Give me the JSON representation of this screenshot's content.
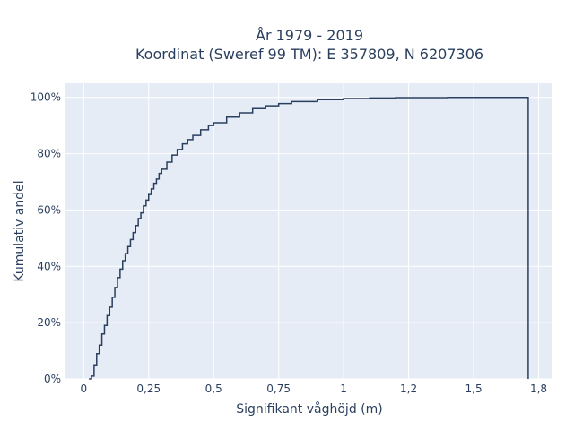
{
  "chart_data": {
    "type": "line",
    "line_shape": "step",
    "title_lines": [
      "År 1979 - 2019",
      "Koordinat (Sweref 99 TM): E 357809, N 6207306"
    ],
    "xlabel": "Signifikant våghöjd (m)",
    "ylabel": "Kumulativ andel",
    "xlim": [
      -0.07,
      1.8
    ],
    "ylim": [
      0,
      1.05
    ],
    "x_ticks": [
      0,
      0.25,
      0.5,
      0.75,
      1,
      1.25,
      1.5,
      1.75
    ],
    "x_tick_labels": [
      "0",
      "0,25",
      "0,5",
      "0,75",
      "1",
      "1,2",
      "1,5",
      "1,8"
    ],
    "y_ticks": [
      0,
      0.2,
      0.4,
      0.6,
      0.8,
      1.0
    ],
    "y_tick_labels": [
      "0%",
      "20%",
      "40%",
      "60%",
      "80%",
      "100%"
    ],
    "grid": true,
    "line_color": "#2a3f5f",
    "plot_bgcolor": "#e5ecf6",
    "series": [
      {
        "x": [
          0.02,
          0.03,
          0.04,
          0.05,
          0.06,
          0.07,
          0.08,
          0.09,
          0.1,
          0.11,
          0.12,
          0.13,
          0.14,
          0.15,
          0.16,
          0.17,
          0.18,
          0.19,
          0.2,
          0.21,
          0.22,
          0.23,
          0.24,
          0.25,
          0.26,
          0.27,
          0.28,
          0.29,
          0.3,
          0.32,
          0.34,
          0.36,
          0.38,
          0.4,
          0.42,
          0.45,
          0.48,
          0.5,
          0.55,
          0.6,
          0.65,
          0.7,
          0.75,
          0.8,
          0.9,
          1.0,
          1.1,
          1.2,
          1.4,
          1.5,
          1.71
        ],
        "y": [
          0.0,
          0.01,
          0.05,
          0.09,
          0.12,
          0.16,
          0.19,
          0.225,
          0.255,
          0.29,
          0.325,
          0.36,
          0.39,
          0.42,
          0.445,
          0.47,
          0.495,
          0.52,
          0.545,
          0.57,
          0.59,
          0.615,
          0.635,
          0.655,
          0.675,
          0.695,
          0.71,
          0.73,
          0.745,
          0.77,
          0.795,
          0.815,
          0.835,
          0.85,
          0.865,
          0.885,
          0.9,
          0.91,
          0.93,
          0.945,
          0.96,
          0.97,
          0.978,
          0.985,
          0.992,
          0.996,
          0.998,
          0.999,
          1.0,
          1.0,
          1.0
        ]
      }
    ]
  }
}
